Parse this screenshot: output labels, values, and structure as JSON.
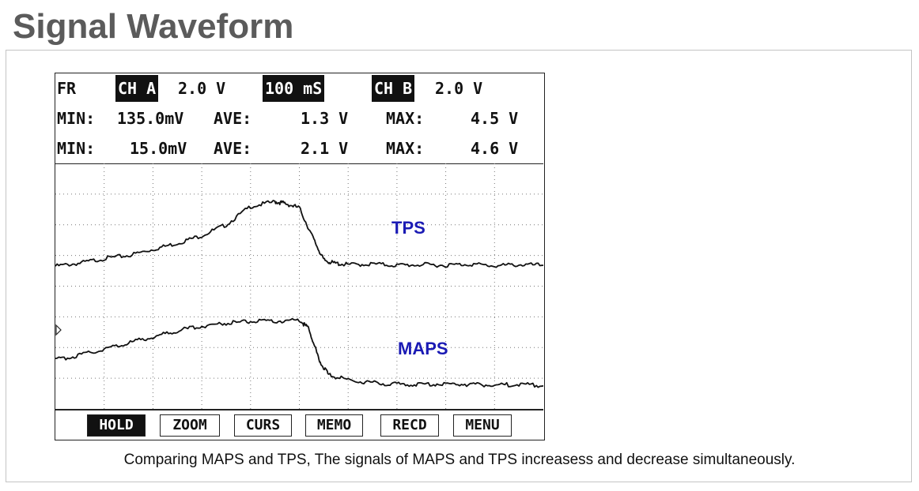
{
  "title": "Signal Waveform",
  "scope": {
    "mode": "FR",
    "ch_a": {
      "label": "CH A",
      "scale": "2.0 V"
    },
    "timebase": "100 mS",
    "ch_b": {
      "label": "CH B",
      "scale": "2.0 V"
    },
    "row_a": {
      "min_label": "MIN:",
      "min": "135.0mV",
      "ave_label": "AVE:",
      "ave": "1.3 V",
      "max_label": "MAX:",
      "max": "4.5 V"
    },
    "row_b": {
      "min_label": "MIN:",
      "min": "15.0mV",
      "ave_label": "AVE:",
      "ave": "2.1 V",
      "max_label": "MAX:",
      "max": "4.6 V"
    },
    "softkeys": [
      "HOLD",
      "ZOOM",
      "CURS",
      "MEMO",
      "RECD",
      "MENU"
    ],
    "active_softkey": "HOLD"
  },
  "caption": "Comparing MAPS and TPS, The signals of MAPS and TPS increasess and decrease simultaneously.",
  "chart_data": {
    "type": "line",
    "x_divisions": 10,
    "y_divisions": 8,
    "grid": true,
    "series": [
      {
        "name": "TPS",
        "color": "#111111",
        "label_color": "#1a1ab4",
        "x": [
          0,
          0.5,
          1.0,
          1.5,
          2.0,
          2.5,
          3.0,
          3.5,
          4.0,
          4.5,
          4.7,
          5.0,
          5.3,
          5.5,
          5.7,
          6.0,
          6.5,
          7.0,
          7.5,
          8.0,
          8.5,
          9.0,
          9.5,
          10.0
        ],
        "y": [
          4.65,
          4.75,
          4.9,
          5.0,
          5.2,
          5.4,
          5.65,
          6.0,
          6.6,
          6.75,
          6.7,
          6.55,
          5.5,
          4.85,
          4.75,
          4.7,
          4.72,
          4.68,
          4.7,
          4.68,
          4.72,
          4.66,
          4.7,
          4.68
        ]
      },
      {
        "name": "MAPS",
        "color": "#111111",
        "label_color": "#1a1ab4",
        "x": [
          0,
          0.5,
          1.0,
          1.5,
          2.0,
          2.5,
          3.0,
          3.5,
          4.0,
          4.5,
          5.0,
          5.2,
          5.4,
          5.6,
          6.0,
          6.5,
          7.0,
          7.5,
          8.0,
          8.5,
          9.0,
          9.5,
          10.0
        ],
        "y": [
          1.6,
          1.75,
          1.95,
          2.15,
          2.35,
          2.55,
          2.7,
          2.8,
          2.85,
          2.85,
          2.9,
          2.6,
          1.6,
          1.1,
          0.95,
          0.85,
          0.8,
          0.8,
          0.82,
          0.8,
          0.78,
          0.8,
          0.75
        ]
      }
    ]
  }
}
